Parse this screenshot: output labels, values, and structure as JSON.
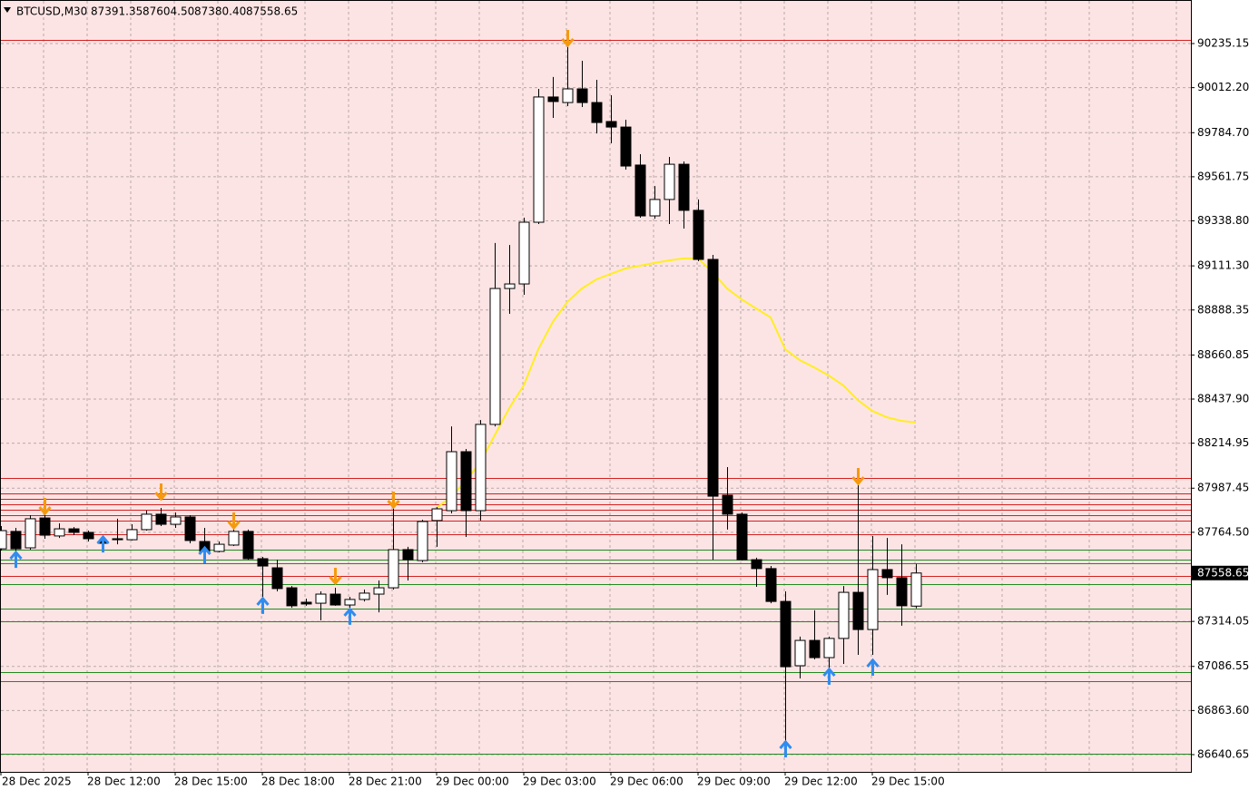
{
  "chart_data": {
    "type": "candlestick",
    "title": "BTCUSD,M30",
    "header_values": [
      87391.35,
      {
        "value": 87604.5,
        "label": "87604.50"
      },
      {
        "value": 87380.4,
        "label": "87380.40"
      },
      87558.65
    ],
    "last_price": 87558.65,
    "categories": [
      "28 Dec 2025",
      null,
      null,
      null,
      null,
      null,
      "28 Dec 12:00",
      null,
      null,
      null,
      null,
      null,
      "28 Dec 15:00",
      null,
      null,
      null,
      null,
      null,
      "28 Dec 18:00",
      null,
      null,
      null,
      null,
      null,
      "28 Dec 21:00",
      null,
      null,
      null,
      null,
      null,
      "29 Dec 00:00",
      null,
      null,
      null,
      null,
      null,
      "29 Dec 03:00",
      null,
      null,
      null,
      null,
      null,
      "29 Dec 06:00",
      null,
      null,
      null,
      null,
      null,
      "29 Dec 09:00",
      null,
      null,
      null,
      null,
      null,
      "29 Dec 12:00",
      null,
      null,
      null,
      null,
      null,
      "29 Dec 15:00",
      null,
      null,
      null
    ],
    "open": [
      87681,
      87769,
      87686,
      87837,
      87746,
      87782,
      87764,
      87718,
      87732,
      87727,
      87778,
      87856,
      87805,
      87842,
      87718,
      87668,
      87700,
      87769,
      87631,
      87585,
      87484,
      87411,
      87406,
      87452,
      87397,
      87425,
      87452,
      87484,
      87677,
      87622,
      87824,
      87874,
      88172,
      87874,
      88310,
      88997,
      89020,
      89332,
      89965,
      89937,
      90006,
      89937,
      89841,
      89813,
      89621,
      89364,
      89447,
      89625,
      89392,
      89144,
      87952,
      87856,
      87626,
      87581,
      87415,
      87090,
      87218,
      87131,
      87228,
      87461,
      87273,
      87576,
      87535,
      87391.35
    ],
    "high": [
      87796,
      87787,
      87851,
      87879,
      87810,
      87791,
      87773,
      87741,
      87833,
      87805,
      87874,
      87888,
      87865,
      87851,
      87787,
      87718,
      87796,
      87778,
      87640,
      87626,
      87493,
      87429,
      87466,
      87484,
      87438,
      87475,
      87521,
      87906,
      87691,
      87828,
      87892,
      88300,
      88186,
      88332,
      89227,
      89217,
      89355,
      90006,
      90066,
      90249,
      90148,
      90052,
      89974,
      89850,
      89676,
      89515,
      89662,
      89639,
      89447,
      89167,
      88094,
      87865,
      87636,
      87594,
      87466,
      87237,
      87370,
      87237,
      87493,
      88012,
      87746,
      87736,
      87704,
      87604.5
    ],
    "low": [
      87672,
      87668,
      87677,
      87732,
      87736,
      87750,
      87718,
      87681,
      87704,
      87723,
      87773,
      87796,
      87787,
      87709,
      87658,
      87663,
      87695,
      87626,
      87402,
      87466,
      87383,
      87393,
      87319,
      87393,
      87383,
      87415,
      87360,
      87475,
      87521,
      87613,
      87691,
      87860,
      87741,
      87824,
      88300,
      88869,
      88965,
      89323,
      89859,
      89919,
      89914,
      89781,
      89731,
      89598,
      89355,
      89350,
      89323,
      89300,
      89135,
      87626,
      87778,
      87622,
      87489,
      87406,
      86641,
      87026,
      87122,
      87053,
      87099,
      87145,
      87145,
      87448,
      87292,
      87380.4
    ],
    "close": [
      87773,
      87681,
      87833,
      87750,
      87782,
      87764,
      87732,
      87709,
      87727,
      87778,
      87856,
      87805,
      87842,
      87723,
      87668,
      87704,
      87769,
      87631,
      87594,
      87480,
      87393,
      87402,
      87452,
      87397,
      87425,
      87457,
      87484,
      87677,
      87626,
      87819,
      87883,
      88172,
      87874,
      88310,
      88997,
      89020,
      89332,
      89965,
      89942,
      90006,
      89937,
      89836,
      89813,
      89616,
      89364,
      89447,
      89625,
      89392,
      89144,
      87947,
      87856,
      87626,
      87581,
      87415,
      87085,
      87218,
      87131,
      87228,
      87461,
      87273,
      87576,
      87535,
      87393,
      87558.65
    ],
    "moving_average": {
      "color": "#ffee22",
      "values": [
        null,
        null,
        null,
        null,
        null,
        null,
        null,
        null,
        null,
        null,
        null,
        null,
        null,
        null,
        null,
        null,
        null,
        null,
        null,
        null,
        null,
        null,
        null,
        null,
        null,
        null,
        null,
        null,
        null,
        null,
        87888,
        87943,
        88025,
        88117,
        88255,
        88392,
        88507,
        88690,
        88828,
        88929,
        88997,
        89043,
        89071,
        89098,
        89112,
        89126,
        89139,
        89149,
        89149,
        89080,
        88997,
        88942,
        88896,
        88851,
        88690,
        88635,
        88598,
        88557,
        88507,
        88433,
        88378,
        88346,
        88328,
        88319
      ]
    },
    "sell_arrows": {
      "color": "#f59a0c",
      "index": [
        3,
        11,
        16,
        23,
        27,
        39,
        59
      ],
      "values": [
        87897,
        87970,
        87824,
        87544,
        87929,
        90263,
        88048
      ]
    },
    "buy_arrows": {
      "color": "#2f8cf0",
      "index": [
        1,
        7,
        14,
        18,
        24,
        54,
        57,
        60
      ],
      "values": [
        87626,
        87704,
        87649,
        87393,
        87338,
        86668,
        87035,
        87081
      ]
    },
    "resistance_levels": {
      "color": "#d42020",
      "values": [
        90254,
        88039,
        87961,
        87934,
        87906,
        87879,
        87851,
        87824,
        87755,
        87544
      ]
    },
    "support_levels": {
      "color": "#1f8a1f",
      "values": [
        87677,
        87626,
        87608,
        87503,
        87379,
        87315,
        87058,
        87012,
        86645
      ]
    },
    "ylim": [
      86553.5,
      90455.3
    ],
    "yticks": [
      90235.15,
      {
        "value": 90012.2,
        "label": "90012.20"
      },
      {
        "value": 89784.7,
        "label": "89784.70"
      },
      89561.75,
      {
        "value": 89338.8,
        "label": "89338.80"
      },
      {
        "value": 89111.3,
        "label": "89111.30"
      },
      88888.35,
      88660.85,
      {
        "value": 88437.9,
        "label": "88437.90"
      },
      88214.95,
      87987.45,
      {
        "value": 87764.5,
        "label": "87764.50"
      },
      87314.05,
      87086.55,
      {
        "value": 86863.6,
        "label": "86863.60"
      },
      86640.65
    ],
    "grid": true
  }
}
